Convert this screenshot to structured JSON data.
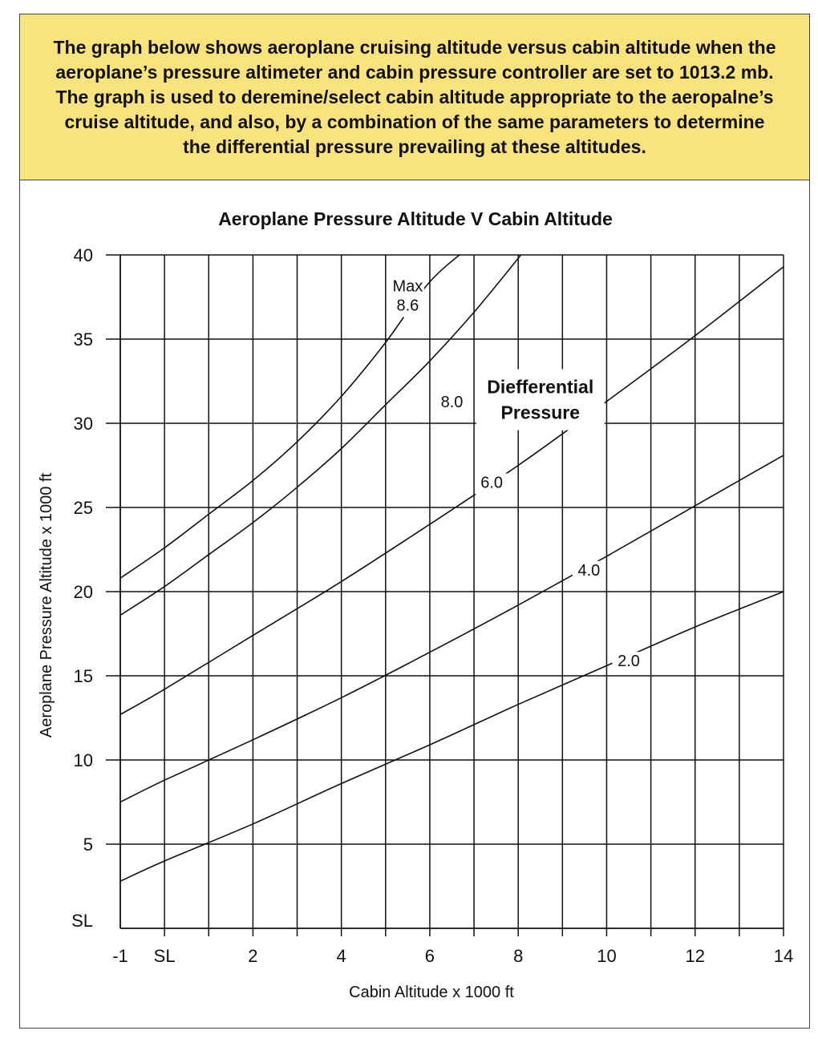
{
  "banner": {
    "text": "The graph below shows aeroplane cruising altitude versus cabin altitude when the\naeroplane’s pressure altimeter and cabin pressure controller are set to  1013.2 mb.\nThe graph is used to deremine/select cabin altitude appropriate to the aeropalne’s\ncruise altitude, and also, by a combination of the same parameters to determine\nthe differential pressure prevailing at these altitudes."
  },
  "chart_data": {
    "type": "line",
    "title": "Aeroplane Pressure Altitude V Cabin Altitude",
    "xlabel": "Cabin Altitude x 1000 ft",
    "ylabel": "Aeroplane Pressure Altitude x 1000 ft",
    "xlim": [
      -1,
      14
    ],
    "ylim": [
      0,
      40
    ],
    "x_ticks": [
      {
        "v": -1,
        "label": "-1"
      },
      {
        "v": 0,
        "label": "SL"
      },
      {
        "v": 2,
        "label": "2"
      },
      {
        "v": 4,
        "label": "4"
      },
      {
        "v": 6,
        "label": "6"
      },
      {
        "v": 8,
        "label": "8"
      },
      {
        "v": 10,
        "label": "10"
      },
      {
        "v": 12,
        "label": "12"
      },
      {
        "v": 14,
        "label": "14"
      }
    ],
    "y_ticks": [
      {
        "v": 0,
        "label": "SL"
      },
      {
        "v": 5,
        "label": "5"
      },
      {
        "v": 10,
        "label": "10"
      },
      {
        "v": 15,
        "label": "15"
      },
      {
        "v": 20,
        "label": "20"
      },
      {
        "v": 25,
        "label": "25"
      },
      {
        "v": 30,
        "label": "30"
      },
      {
        "v": 35,
        "label": "35"
      },
      {
        "v": 40,
        "label": "40"
      }
    ],
    "grid": true,
    "legend": "none",
    "annotation": "Diefferential\nPressure",
    "series": [
      {
        "name": "Max\n8.6",
        "x": [
          -1,
          0,
          1,
          2,
          3,
          4,
          5,
          6,
          7,
          7.1
        ],
        "y": [
          20.8,
          22.6,
          24.6,
          26.6,
          28.9,
          31.6,
          34.8,
          38.4,
          40.7,
          41
        ]
      },
      {
        "name": "8.0",
        "x": [
          -1,
          0,
          1,
          2,
          3,
          4,
          5,
          6,
          7,
          8,
          8.5
        ],
        "y": [
          18.6,
          20.3,
          22.2,
          24.1,
          26.2,
          28.5,
          31.1,
          33.7,
          36.6,
          39.8,
          41.5
        ]
      },
      {
        "name": "6.0",
        "x": [
          -1,
          0,
          2,
          4,
          6,
          8,
          10,
          12,
          14
        ],
        "y": [
          12.7,
          14.2,
          17.4,
          20.6,
          24.0,
          27.5,
          31.3,
          35.2,
          39.3
        ]
      },
      {
        "name": "4.0",
        "x": [
          -1,
          0,
          2,
          4,
          6,
          8,
          10,
          12,
          14
        ],
        "y": [
          7.5,
          8.8,
          11.2,
          13.7,
          16.4,
          19.2,
          22.1,
          25.1,
          28.1
        ]
      },
      {
        "name": "2.0",
        "x": [
          -1,
          0,
          2,
          4,
          6,
          8,
          10,
          12,
          14
        ],
        "y": [
          2.8,
          4.0,
          6.2,
          8.6,
          10.9,
          13.3,
          15.6,
          17.9,
          20.0
        ]
      }
    ],
    "curve_labels": [
      {
        "series": 0,
        "x": 5.5,
        "y": 37.5
      },
      {
        "series": 1,
        "x": 6.5,
        "y": 31.2
      },
      {
        "series": 2,
        "x": 7.4,
        "y": 26.4
      },
      {
        "series": 3,
        "x": 9.6,
        "y": 21.2
      },
      {
        "series": 4,
        "x": 10.5,
        "y": 15.8
      }
    ]
  }
}
